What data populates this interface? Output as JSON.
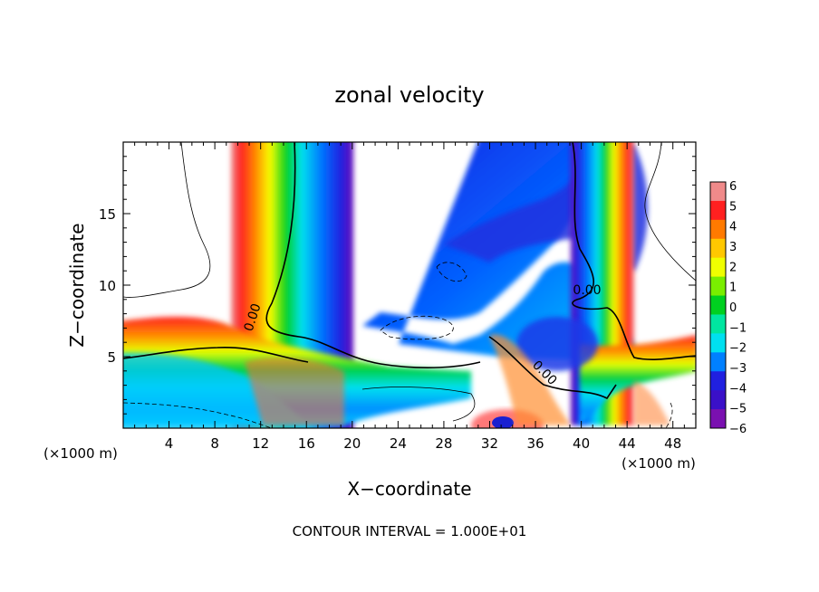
{
  "chart_data": {
    "type": "heatmap",
    "title": "zonal velocity",
    "xlabel": "X−coordinate",
    "ylabel": "Z−coordinate",
    "x_unit_left": "(×1000 m)",
    "x_unit_right": "(×1000 m)",
    "footer": "CONTOUR INTERVAL = 1.000E+01",
    "xlim": [
      0,
      50
    ],
    "ylim": [
      0,
      20
    ],
    "x_ticks": [
      4,
      8,
      12,
      16,
      20,
      24,
      28,
      32,
      36,
      40,
      44,
      48
    ],
    "y_ticks": [
      5,
      10,
      15
    ],
    "contour_label": "0.00",
    "colorbar": {
      "range": [
        -6,
        6
      ],
      "ticks": [
        "6",
        "5",
        "4",
        "3",
        "2",
        "1",
        "0",
        "−1",
        "−2",
        "−3",
        "−4",
        "−5",
        "−6"
      ],
      "colors": [
        "#f08a8a",
        "#ff2020",
        "#ff7a00",
        "#ffc800",
        "#f0ff00",
        "#7aee00",
        "#00d020",
        "#00e6a0",
        "#00e0f0",
        "#0080ff",
        "#2020e0",
        "#3a10c8",
        "#7a10b0"
      ]
    }
  }
}
